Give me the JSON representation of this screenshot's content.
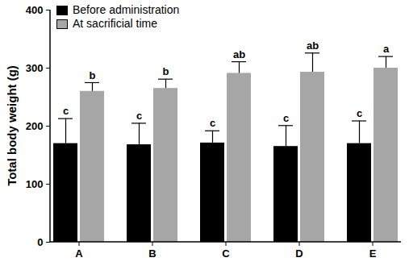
{
  "chart_data": {
    "type": "bar",
    "y_label": "Total body weight (g)",
    "categories": [
      "A",
      "B",
      "C",
      "D",
      "E"
    ],
    "series": [
      {
        "name": "Before administration",
        "color": "#000000",
        "values": [
          170,
          168,
          171,
          165,
          170
        ],
        "errors": [
          43,
          37,
          21,
          36,
          39
        ],
        "letters": [
          "c",
          "c",
          "c",
          "c",
          "c"
        ]
      },
      {
        "name": "At sacrificial time",
        "color": "#a6a6a6",
        "values": [
          260,
          265,
          291,
          293,
          300
        ],
        "errors": [
          15,
          16,
          20,
          33,
          20
        ],
        "letters": [
          "b",
          "b",
          "ab",
          "ab",
          "a"
        ]
      }
    ],
    "ylim": [
      0,
      400
    ],
    "yticks": [
      0,
      100,
      200,
      300,
      400
    ],
    "legend": "top-left",
    "grid": false
  }
}
